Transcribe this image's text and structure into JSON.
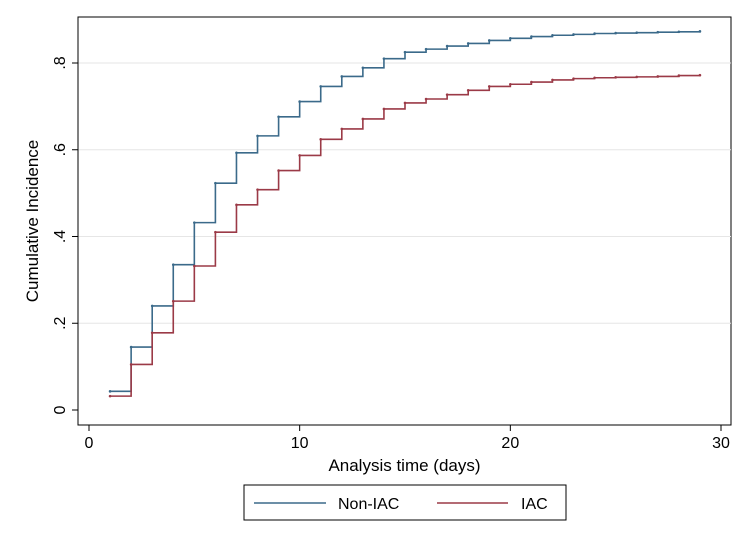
{
  "chart_data": {
    "type": "line",
    "step": true,
    "title": "",
    "xlabel": "Analysis time (days)",
    "ylabel": "Cumulative Incidence",
    "xlim": [
      0,
      30
    ],
    "ylim": [
      0,
      0.9
    ],
    "xticks": [
      0,
      10,
      20,
      30
    ],
    "xtick_labels": [
      "0",
      "10",
      "20",
      "30"
    ],
    "yticks": [
      0,
      0.2,
      0.4,
      0.6,
      0.8
    ],
    "ytick_labels": [
      "0",
      ".2",
      ".4",
      ".6",
      ".8"
    ],
    "grid": true,
    "legend_position": "bottom",
    "series": [
      {
        "name": "Non-IAC",
        "color": "#3b6a8a",
        "x": [
          1,
          2,
          3,
          4,
          5,
          6,
          7,
          8,
          9,
          10,
          11,
          12,
          13,
          14,
          15,
          16,
          17,
          18,
          19,
          20,
          21,
          22,
          23,
          24,
          25,
          26,
          27,
          28,
          29
        ],
        "y": [
          0.043,
          0.145,
          0.24,
          0.335,
          0.432,
          0.523,
          0.593,
          0.632,
          0.676,
          0.711,
          0.746,
          0.769,
          0.789,
          0.81,
          0.825,
          0.832,
          0.839,
          0.845,
          0.852,
          0.857,
          0.861,
          0.864,
          0.866,
          0.868,
          0.869,
          0.87,
          0.871,
          0.872,
          0.873
        ]
      },
      {
        "name": "IAC",
        "color": "#9b3a47",
        "x": [
          1,
          2,
          3,
          4,
          5,
          6,
          7,
          8,
          9,
          10,
          11,
          12,
          13,
          14,
          15,
          16,
          17,
          18,
          19,
          20,
          21,
          22,
          23,
          24,
          25,
          26,
          27,
          28,
          29
        ],
        "y": [
          0.032,
          0.105,
          0.178,
          0.251,
          0.332,
          0.41,
          0.473,
          0.508,
          0.552,
          0.587,
          0.624,
          0.648,
          0.671,
          0.694,
          0.708,
          0.717,
          0.727,
          0.737,
          0.746,
          0.751,
          0.756,
          0.761,
          0.764,
          0.766,
          0.767,
          0.768,
          0.769,
          0.771,
          0.772
        ]
      }
    ]
  }
}
